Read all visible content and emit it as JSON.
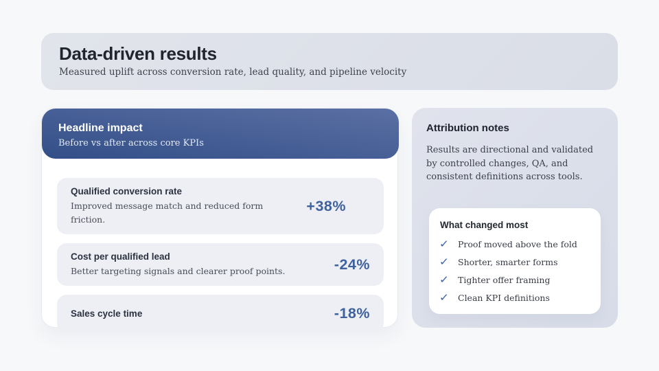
{
  "header": {
    "title": "Data-driven results",
    "subtitle": "Measured uplift across conversion rate, lead quality, and pipeline velocity"
  },
  "impact": {
    "title": "Headline impact",
    "subtitle": "Before vs after across core KPIs",
    "kpis": [
      {
        "label": "Qualified conversion rate",
        "description": "Improved message match and reduced form friction.",
        "value": "+38%"
      },
      {
        "label": "Cost per qualified lead",
        "description": "Better targeting signals and clearer proof points.",
        "value": "-24%"
      },
      {
        "label": "Sales cycle time",
        "value": "-18%"
      }
    ]
  },
  "notes": {
    "title": "Attribution notes",
    "body": "Results are directional and validated by controlled changes, QA, and consistent definitions across tools.",
    "changes": {
      "title": "What changed most",
      "check_icon": "✓",
      "items": [
        "Proof moved above the fold",
        "Shorter, smarter forms",
        "Tighter offer framing",
        "Clean KPI definitions"
      ]
    }
  },
  "colors": {
    "accent_blue": "#3f619e",
    "impact_header_gradient_start": "#334f88",
    "impact_header_gradient_end": "#5b70a4",
    "band_background": "#dde1e9",
    "notes_background": "#dbdfe9",
    "row_background": "#edeff4",
    "page_background": "#f7f8fa"
  }
}
